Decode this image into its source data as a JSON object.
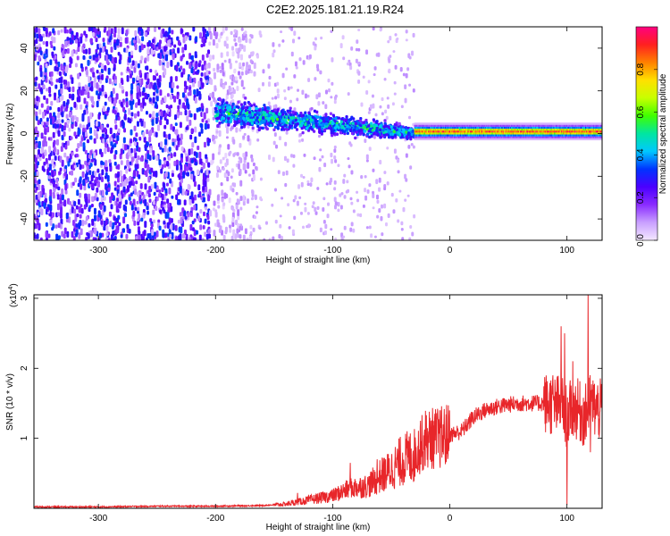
{
  "title": "C2E2.2025.181.21.19.R24",
  "chart_data": [
    {
      "type": "heatmap",
      "xlabel": "Height of straight line (km)",
      "ylabel": "Frequency (Hz)",
      "xlim": [
        -355,
        130
      ],
      "ylim": [
        -50,
        50
      ],
      "xticks": [
        -300,
        -200,
        -100,
        0,
        100
      ],
      "yticks": [
        -40,
        -20,
        0,
        20,
        40
      ],
      "colorbar": {
        "label": "Normalized spectral amplitude",
        "range": [
          0,
          1
        ],
        "ticks": [
          0.0,
          0.2,
          0.4,
          0.6,
          0.8
        ],
        "colors": [
          "#f4e8ff",
          "#c9a0ff",
          "#8a2cff",
          "#4b00ff",
          "#0033ff",
          "#00c8ff",
          "#00e6a0",
          "#40ff00",
          "#c8ff00",
          "#ffe000",
          "#ff8000",
          "#ff2020",
          "#ff0080"
        ]
      },
      "features": [
        {
          "x_range": [
            -355,
            -165
          ],
          "description_value": 0.25
        },
        {
          "x_range": [
            -200,
            -30
          ],
          "freq_center_start": 10,
          "freq_center_end": 0,
          "peak_amplitude": 0.55
        },
        {
          "x_range": [
            -30,
            130
          ],
          "freq_center": 1,
          "peak_amplitude": 0.95
        }
      ]
    },
    {
      "type": "line",
      "xlabel": "Height of straight line (km)",
      "ylabel": "SNR (10 * v/v)",
      "y_multiplier": "(x10",
      "y_multiplier_exp": "4",
      "y_multiplier_close": ")",
      "xlim": [
        -355,
        130
      ],
      "ylim": [
        0,
        3.05
      ],
      "xticks": [
        -300,
        -200,
        -100,
        0,
        100
      ],
      "yticks": [
        1,
        2,
        3
      ],
      "series": [
        {
          "color": "#e8262a",
          "x": [
            -355,
            -300,
            -250,
            -200,
            -160,
            -140,
            -120,
            -100,
            -90,
            -80,
            -70,
            -60,
            -50,
            -40,
            -30,
            -25,
            -20,
            -10,
            0,
            10,
            20,
            30,
            40,
            50,
            60,
            70,
            80,
            85,
            90,
            95,
            100,
            105,
            110,
            115,
            120,
            125,
            130
          ],
          "y": [
            0.02,
            0.02,
            0.03,
            0.03,
            0.04,
            0.06,
            0.12,
            0.18,
            0.25,
            0.3,
            0.32,
            0.45,
            0.55,
            0.7,
            0.75,
            0.9,
            1.0,
            1.0,
            1.05,
            1.1,
            1.3,
            1.4,
            1.45,
            1.48,
            1.5,
            1.5,
            1.5,
            1.5,
            1.45,
            1.5,
            1.3,
            1.45,
            1.4,
            1.3,
            1.5,
            1.42,
            1.4
          ],
          "spikes": [
            [
              -130,
              0.22
            ],
            [
              -85,
              0.65
            ],
            [
              -62,
              0.7
            ],
            [
              -25,
              1.25
            ],
            [
              -18,
              1.1
            ],
            [
              88,
              1.9
            ],
            [
              95,
              2.6
            ],
            [
              98,
              2.5
            ],
            [
              100,
              0.05
            ],
            [
              105,
              2.1
            ],
            [
              118,
              3.05
            ],
            [
              120,
              0.8
            ]
          ]
        }
      ]
    }
  ]
}
